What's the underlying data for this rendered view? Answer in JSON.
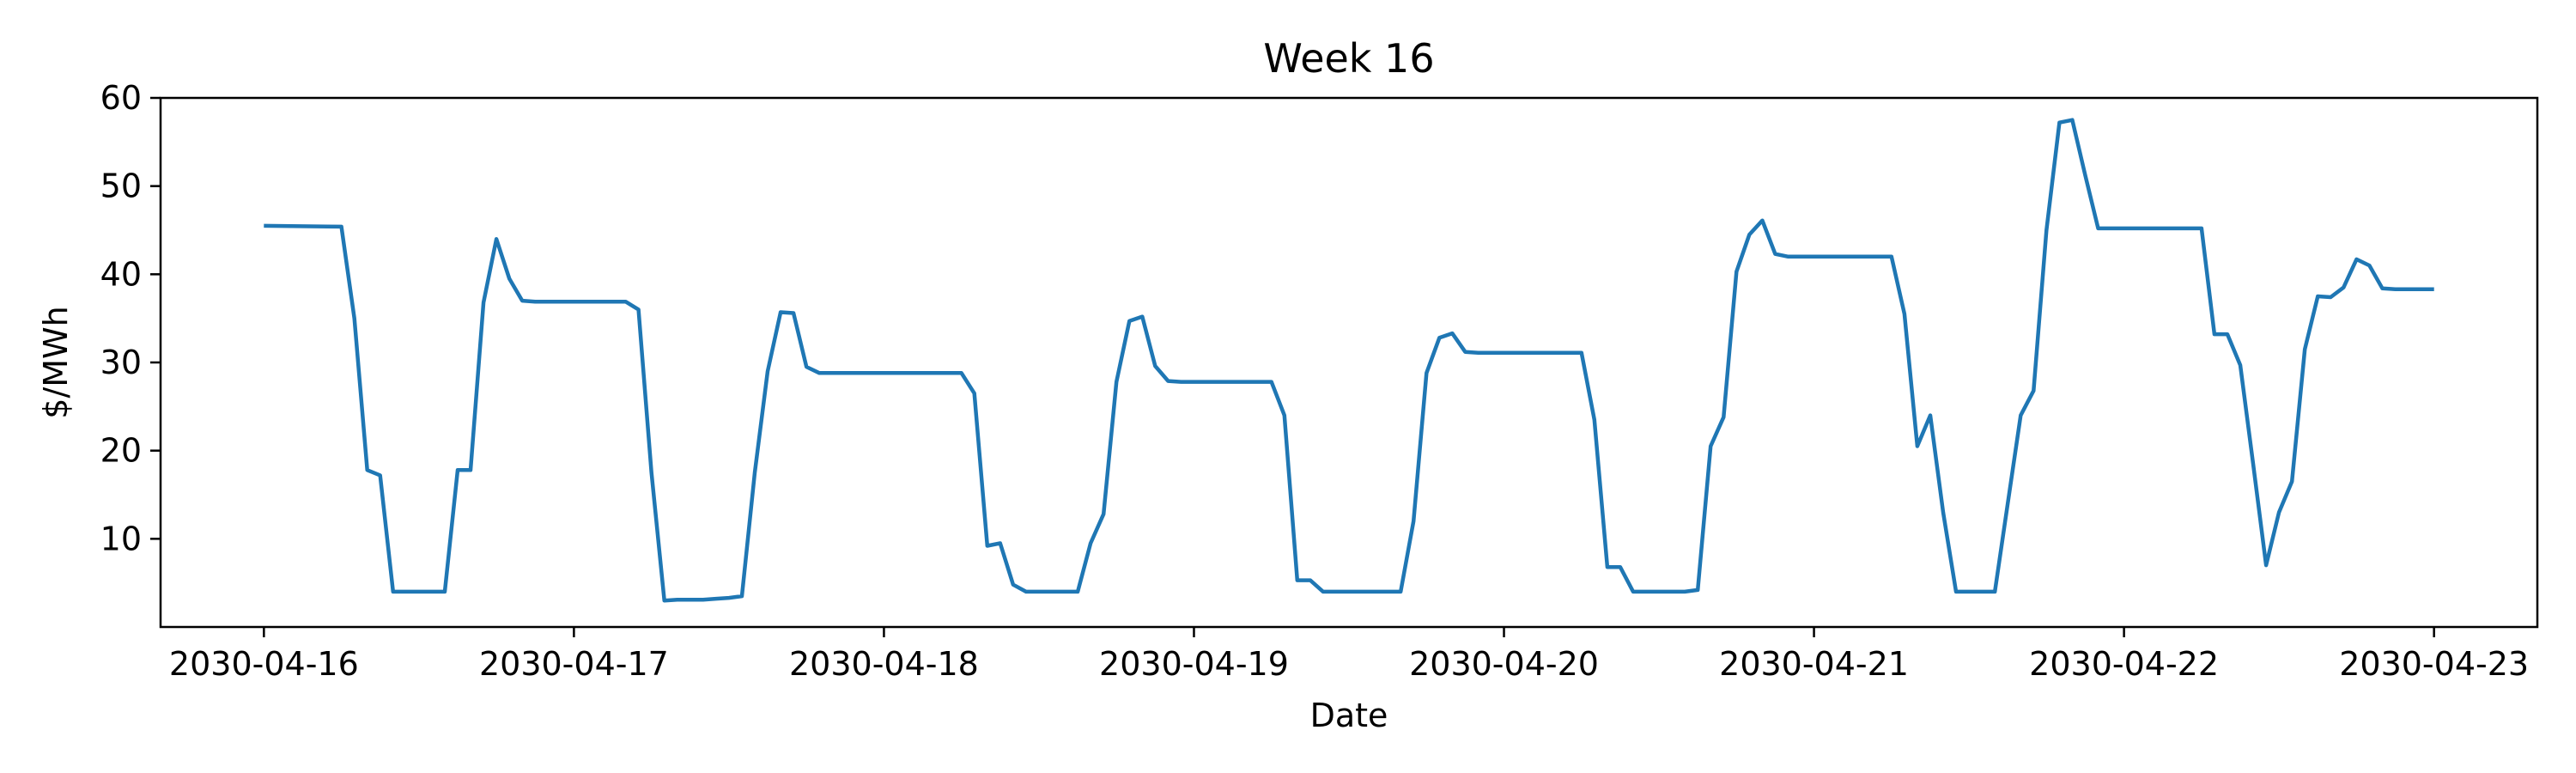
{
  "chart_data": {
    "type": "line",
    "title": "Week 16",
    "xlabel": "Date",
    "ylabel": "$/MWh",
    "xlim": [
      "2030-04-15T16:00",
      "2030-04-23T08:00"
    ],
    "ylim": [
      0,
      60
    ],
    "yticks": [
      10,
      20,
      30,
      40,
      50,
      60
    ],
    "xticks": [
      "2030-04-16",
      "2030-04-17",
      "2030-04-18",
      "2030-04-19",
      "2030-04-20",
      "2030-04-21",
      "2030-04-22",
      "2030-04-23"
    ],
    "grid": false,
    "line_color": "#1f77b4",
    "series": [
      {
        "x": [
          "2030-04-16T00:00",
          "2030-04-16T06:00",
          "2030-04-16T07:00",
          "2030-04-16T08:00",
          "2030-04-16T09:00",
          "2030-04-16T10:00",
          "2030-04-16T11:00",
          "2030-04-16T12:00",
          "2030-04-16T13:00",
          "2030-04-16T14:00",
          "2030-04-16T15:00",
          "2030-04-16T16:00",
          "2030-04-16T17:00",
          "2030-04-16T18:00",
          "2030-04-16T19:00",
          "2030-04-16T20:00",
          "2030-04-16T21:00",
          "2030-04-16T22:00",
          "2030-04-16T23:00",
          "2030-04-17T00:00",
          "2030-04-17T04:00",
          "2030-04-17T05:00",
          "2030-04-17T06:00",
          "2030-04-17T07:00",
          "2030-04-17T08:00",
          "2030-04-17T09:00",
          "2030-04-17T10:00",
          "2030-04-17T11:00",
          "2030-04-17T12:00",
          "2030-04-17T13:00",
          "2030-04-17T14:00",
          "2030-04-17T15:00",
          "2030-04-17T16:00",
          "2030-04-17T17:00",
          "2030-04-17T18:00",
          "2030-04-17T19:00",
          "2030-04-17T20:00",
          "2030-04-17T21:00",
          "2030-04-17T22:00",
          "2030-04-17T23:00",
          "2030-04-18T00:00",
          "2030-04-18T06:00",
          "2030-04-18T07:00",
          "2030-04-18T08:00",
          "2030-04-18T09:00",
          "2030-04-18T10:00",
          "2030-04-18T11:00",
          "2030-04-18T12:00",
          "2030-04-18T13:00",
          "2030-04-18T14:00",
          "2030-04-18T15:00",
          "2030-04-18T16:00",
          "2030-04-18T17:00",
          "2030-04-18T18:00",
          "2030-04-18T19:00",
          "2030-04-18T20:00",
          "2030-04-18T21:00",
          "2030-04-18T22:00",
          "2030-04-18T23:00",
          "2030-04-19T00:00",
          "2030-04-19T06:00",
          "2030-04-19T07:00",
          "2030-04-19T08:00",
          "2030-04-19T09:00",
          "2030-04-19T10:00",
          "2030-04-19T11:00",
          "2030-04-19T12:00",
          "2030-04-19T13:00",
          "2030-04-19T14:00",
          "2030-04-19T15:00",
          "2030-04-19T16:00",
          "2030-04-19T17:00",
          "2030-04-19T18:00",
          "2030-04-19T19:00",
          "2030-04-19T20:00",
          "2030-04-19T21:00",
          "2030-04-19T22:00",
          "2030-04-19T23:00",
          "2030-04-20T00:00",
          "2030-04-20T06:00",
          "2030-04-20T07:00",
          "2030-04-20T08:00",
          "2030-04-20T09:00",
          "2030-04-20T10:00",
          "2030-04-20T11:00",
          "2030-04-20T12:00",
          "2030-04-20T13:00",
          "2030-04-20T14:00",
          "2030-04-20T15:00",
          "2030-04-20T16:00",
          "2030-04-20T17:00",
          "2030-04-20T18:00",
          "2030-04-20T19:00",
          "2030-04-20T20:00",
          "2030-04-20T21:00",
          "2030-04-20T22:00",
          "2030-04-20T23:00",
          "2030-04-21T00:00",
          "2030-04-21T06:00",
          "2030-04-21T07:00",
          "2030-04-21T08:00",
          "2030-04-21T09:00",
          "2030-04-21T10:00",
          "2030-04-21T11:00",
          "2030-04-21T12:00",
          "2030-04-21T13:00",
          "2030-04-21T14:00",
          "2030-04-21T15:00",
          "2030-04-21T16:00",
          "2030-04-21T17:00",
          "2030-04-21T18:00",
          "2030-04-21T19:00",
          "2030-04-21T20:00",
          "2030-04-21T21:00",
          "2030-04-21T22:00",
          "2030-04-21T23:00",
          "2030-04-22T00:00",
          "2030-04-22T06:00",
          "2030-04-22T07:00",
          "2030-04-22T08:00",
          "2030-04-22T09:00",
          "2030-04-22T10:00",
          "2030-04-22T11:00",
          "2030-04-22T12:00",
          "2030-04-22T13:00",
          "2030-04-22T14:00",
          "2030-04-22T15:00",
          "2030-04-22T16:00",
          "2030-04-22T17:00",
          "2030-04-22T18:00",
          "2030-04-22T19:00",
          "2030-04-22T20:00",
          "2030-04-22T21:00",
          "2030-04-22T22:00",
          "2030-04-22T23:00",
          "2030-04-23T00:00"
        ],
        "y": [
          45.5,
          45.4,
          35.0,
          17.8,
          17.2,
          4.0,
          4.0,
          4.0,
          4.0,
          4.0,
          17.8,
          17.8,
          36.8,
          44.0,
          39.5,
          37.0,
          36.9,
          36.9,
          36.9,
          36.9,
          36.9,
          36.0,
          17.5,
          3.0,
          3.1,
          3.1,
          3.1,
          3.2,
          3.3,
          3.5,
          17.5,
          29.0,
          35.7,
          35.6,
          29.5,
          28.8,
          28.8,
          28.8,
          28.8,
          28.8,
          28.8,
          28.8,
          26.5,
          9.2,
          9.5,
          4.8,
          4.0,
          4.0,
          4.0,
          4.0,
          4.0,
          9.5,
          12.8,
          27.8,
          34.7,
          35.2,
          29.6,
          27.9,
          27.8,
          27.8,
          27.8,
          24.0,
          5.3,
          5.3,
          4.0,
          4.0,
          4.0,
          4.0,
          4.0,
          4.0,
          4.0,
          12.0,
          28.8,
          32.8,
          33.3,
          31.2,
          31.1,
          31.1,
          31.1,
          31.1,
          23.5,
          6.8,
          6.8,
          4.0,
          4.0,
          4.0,
          4.0,
          4.0,
          4.2,
          20.5,
          23.8,
          40.3,
          44.5,
          46.1,
          42.3,
          42.0,
          42.0,
          42.0,
          42.0,
          35.5,
          20.5,
          24.0,
          13.0,
          4.0,
          4.0,
          4.0,
          4.0,
          14.0,
          24.0,
          26.8,
          45.0,
          57.2,
          57.5,
          51.2,
          45.2,
          45.2,
          45.2,
          45.2,
          33.2,
          33.2,
          29.7,
          18.5,
          7.0,
          13.0,
          16.5,
          31.5,
          37.5,
          37.4,
          38.5,
          41.7,
          41.0,
          38.4,
          38.3,
          38.3,
          38.3,
          38.3
        ]
      }
    ]
  }
}
